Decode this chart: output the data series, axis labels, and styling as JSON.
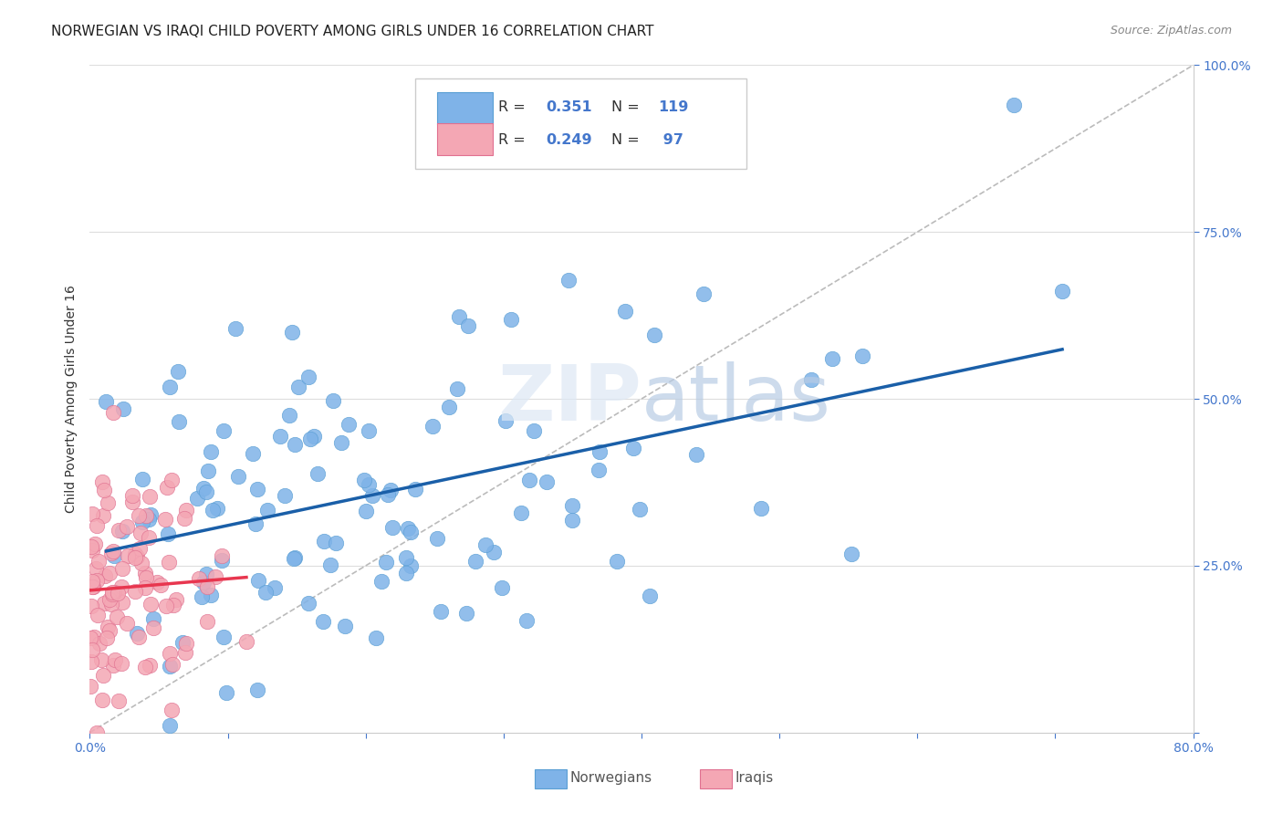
{
  "title": "NORWEGIAN VS IRAQI CHILD POVERTY AMONG GIRLS UNDER 16 CORRELATION CHART",
  "source": "Source: ZipAtlas.com",
  "ylabel": "Child Poverty Among Girls Under 16",
  "xlim": [
    0,
    0.8
  ],
  "ylim": [
    0,
    1.0
  ],
  "norwegian_color": "#7fb3e8",
  "iraqi_color": "#f4a7b4",
  "trend_norwegian_color": "#1a5fa8",
  "trend_iraqi_color": "#e8364f",
  "R_norwegian": 0.351,
  "N_norwegian": 119,
  "R_iraqi": 0.249,
  "N_iraqi": 97,
  "background_color": "#ffffff",
  "grid_color": "#dddddd",
  "title_fontsize": 11,
  "axis_label_fontsize": 10,
  "tick_fontsize": 10,
  "norwegian_seed": 42,
  "iraqi_seed": 7
}
